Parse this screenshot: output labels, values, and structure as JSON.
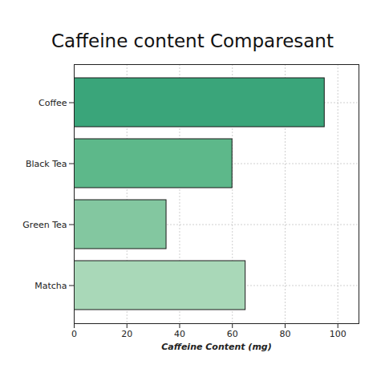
{
  "chart_data": {
    "type": "bar",
    "orientation": "horizontal",
    "title": "Caffeine content Comparesant",
    "x_label": "Caffeine Content (mg)",
    "categories": [
      "Coffee",
      "Black Tea",
      "Green Tea",
      "Matcha"
    ],
    "values": [
      95,
      60,
      35,
      65
    ],
    "colors": [
      "#3aa57a",
      "#5db88a",
      "#83c7a0",
      "#a9d8b8"
    ],
    "xlim": [
      0,
      108
    ],
    "xticks": [
      0,
      20,
      40,
      60,
      80,
      100
    ],
    "grid": true
  }
}
